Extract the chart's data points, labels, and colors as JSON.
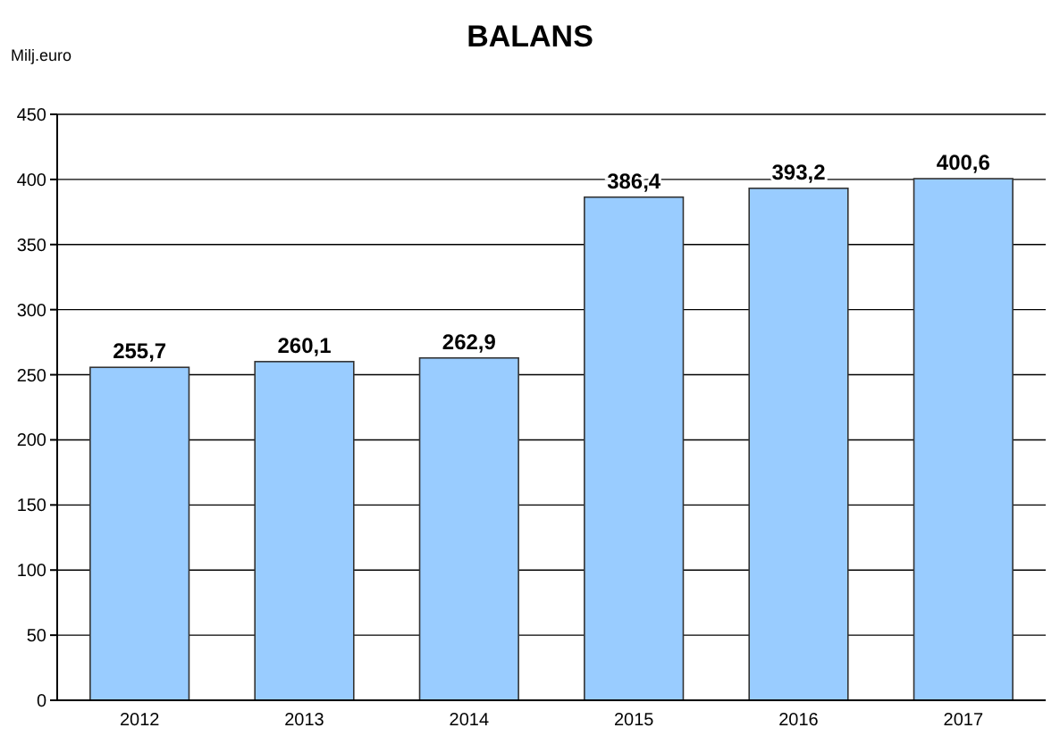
{
  "chart_data": {
    "type": "bar",
    "title": "BALANS",
    "ylabel": "Milj.euro",
    "categories": [
      "2012",
      "2013",
      "2014",
      "2015",
      "2016",
      "2017"
    ],
    "values": [
      255.7,
      260.1,
      262.9,
      386.4,
      393.2,
      400.6
    ],
    "value_labels": [
      "255,7",
      "260,1",
      "262,9",
      "386,4",
      "393,2",
      "400,6"
    ],
    "color": "#99ccff",
    "ylim": [
      0,
      450
    ],
    "yticks": [
      0,
      50,
      100,
      150,
      200,
      250,
      300,
      350,
      400,
      450
    ],
    "grid": "y"
  }
}
